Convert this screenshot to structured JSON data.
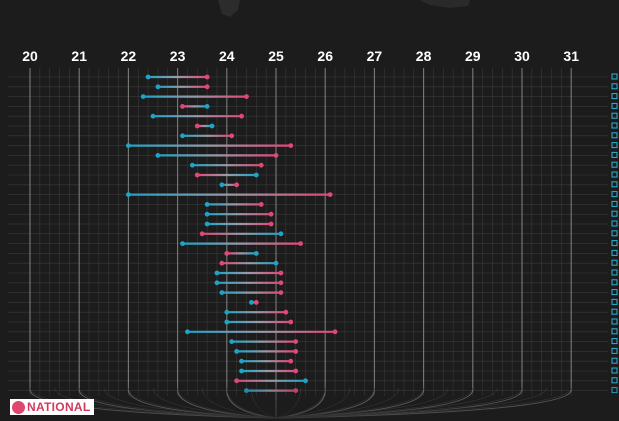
{
  "chart_data": {
    "type": "dumbbell",
    "x_ticks": [
      20,
      21,
      22,
      23,
      24,
      25,
      26,
      27,
      28,
      29,
      30,
      31
    ],
    "xlim": [
      20,
      31
    ],
    "grid": true,
    "colors": {
      "start": "#1fa3c6",
      "end": "#e0487a",
      "grid": "#3a3a3a",
      "axis_line": "#7a7a7a"
    },
    "rows": [
      {
        "start": 22.4,
        "end": 23.6
      },
      {
        "start": 22.6,
        "end": 23.6
      },
      {
        "start": 22.3,
        "end": 24.4
      },
      {
        "start": 23.6,
        "end": 23.1
      },
      {
        "start": 22.5,
        "end": 24.3
      },
      {
        "start": 23.7,
        "end": 23.4
      },
      {
        "start": 23.1,
        "end": 24.1
      },
      {
        "start": 22.0,
        "end": 25.3
      },
      {
        "start": 22.6,
        "end": 25.0
      },
      {
        "start": 23.3,
        "end": 24.7
      },
      {
        "start": 24.6,
        "end": 23.4
      },
      {
        "start": 23.9,
        "end": 24.2
      },
      {
        "start": 22.0,
        "end": 26.1
      },
      {
        "start": 23.6,
        "end": 24.7
      },
      {
        "start": 23.6,
        "end": 24.9
      },
      {
        "start": 23.6,
        "end": 24.9
      },
      {
        "start": 25.1,
        "end": 23.5
      },
      {
        "start": 23.1,
        "end": 25.5
      },
      {
        "start": 24.6,
        "end": 24.0
      },
      {
        "start": 25.0,
        "end": 23.9
      },
      {
        "start": 23.8,
        "end": 25.1
      },
      {
        "start": 23.8,
        "end": 25.1
      },
      {
        "start": 23.9,
        "end": 25.1
      },
      {
        "start": 24.5,
        "end": 24.6
      },
      {
        "start": 24.0,
        "end": 25.2
      },
      {
        "start": 24.0,
        "end": 25.3
      },
      {
        "start": 23.2,
        "end": 26.2
      },
      {
        "start": 24.1,
        "end": 25.4
      },
      {
        "start": 24.2,
        "end": 25.4
      },
      {
        "start": 24.3,
        "end": 25.3
      },
      {
        "start": 24.3,
        "end": 25.4
      },
      {
        "start": 25.6,
        "end": 24.2
      },
      {
        "start": 24.4,
        "end": 25.4
      }
    ]
  },
  "logo": {
    "text": "NATIONAL"
  }
}
